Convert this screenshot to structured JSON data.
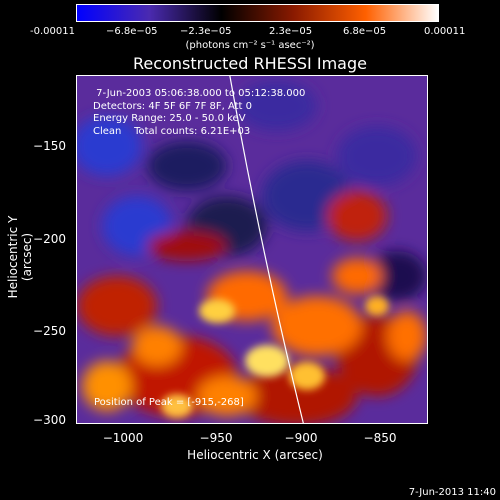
{
  "colorbar": {
    "tick_labels": [
      "-0.00011",
      "−6.8e−05",
      "−2.3e−05",
      "2.3e−05",
      "6.8e−05",
      "0.00011"
    ],
    "units": "(photons cm⁻² s⁻¹ asec⁻²)",
    "colors": [
      "#0000ff",
      "#4a2ab0",
      "#000000",
      "#8a1a00",
      "#ff6000",
      "#ffffff"
    ]
  },
  "title": "Reconstructed RHESSI Image",
  "annotation": {
    "line1": " 7-Jun-2003 05:06:38.000 to 05:12:38.000",
    "line2": "Detectors: 4F 5F 6F 7F 8F, Att 0",
    "line3": "Energy Range: 25.0 - 50.0 keV",
    "line4": "Clean    Total counts: 6.21E+03"
  },
  "peak_label": "Position of Peak = [-915,-268]",
  "axes": {
    "x_title": "Heliocentric X (arcsec)",
    "y_title": "Heliocentric Y (arcsec)",
    "x_ticks": [
      "−1000",
      "−950",
      "−900",
      "−850"
    ],
    "y_ticks": [
      "−150",
      "−200",
      "−250",
      "−300"
    ]
  },
  "timestamp": "7-Jun-2013 11:40"
}
